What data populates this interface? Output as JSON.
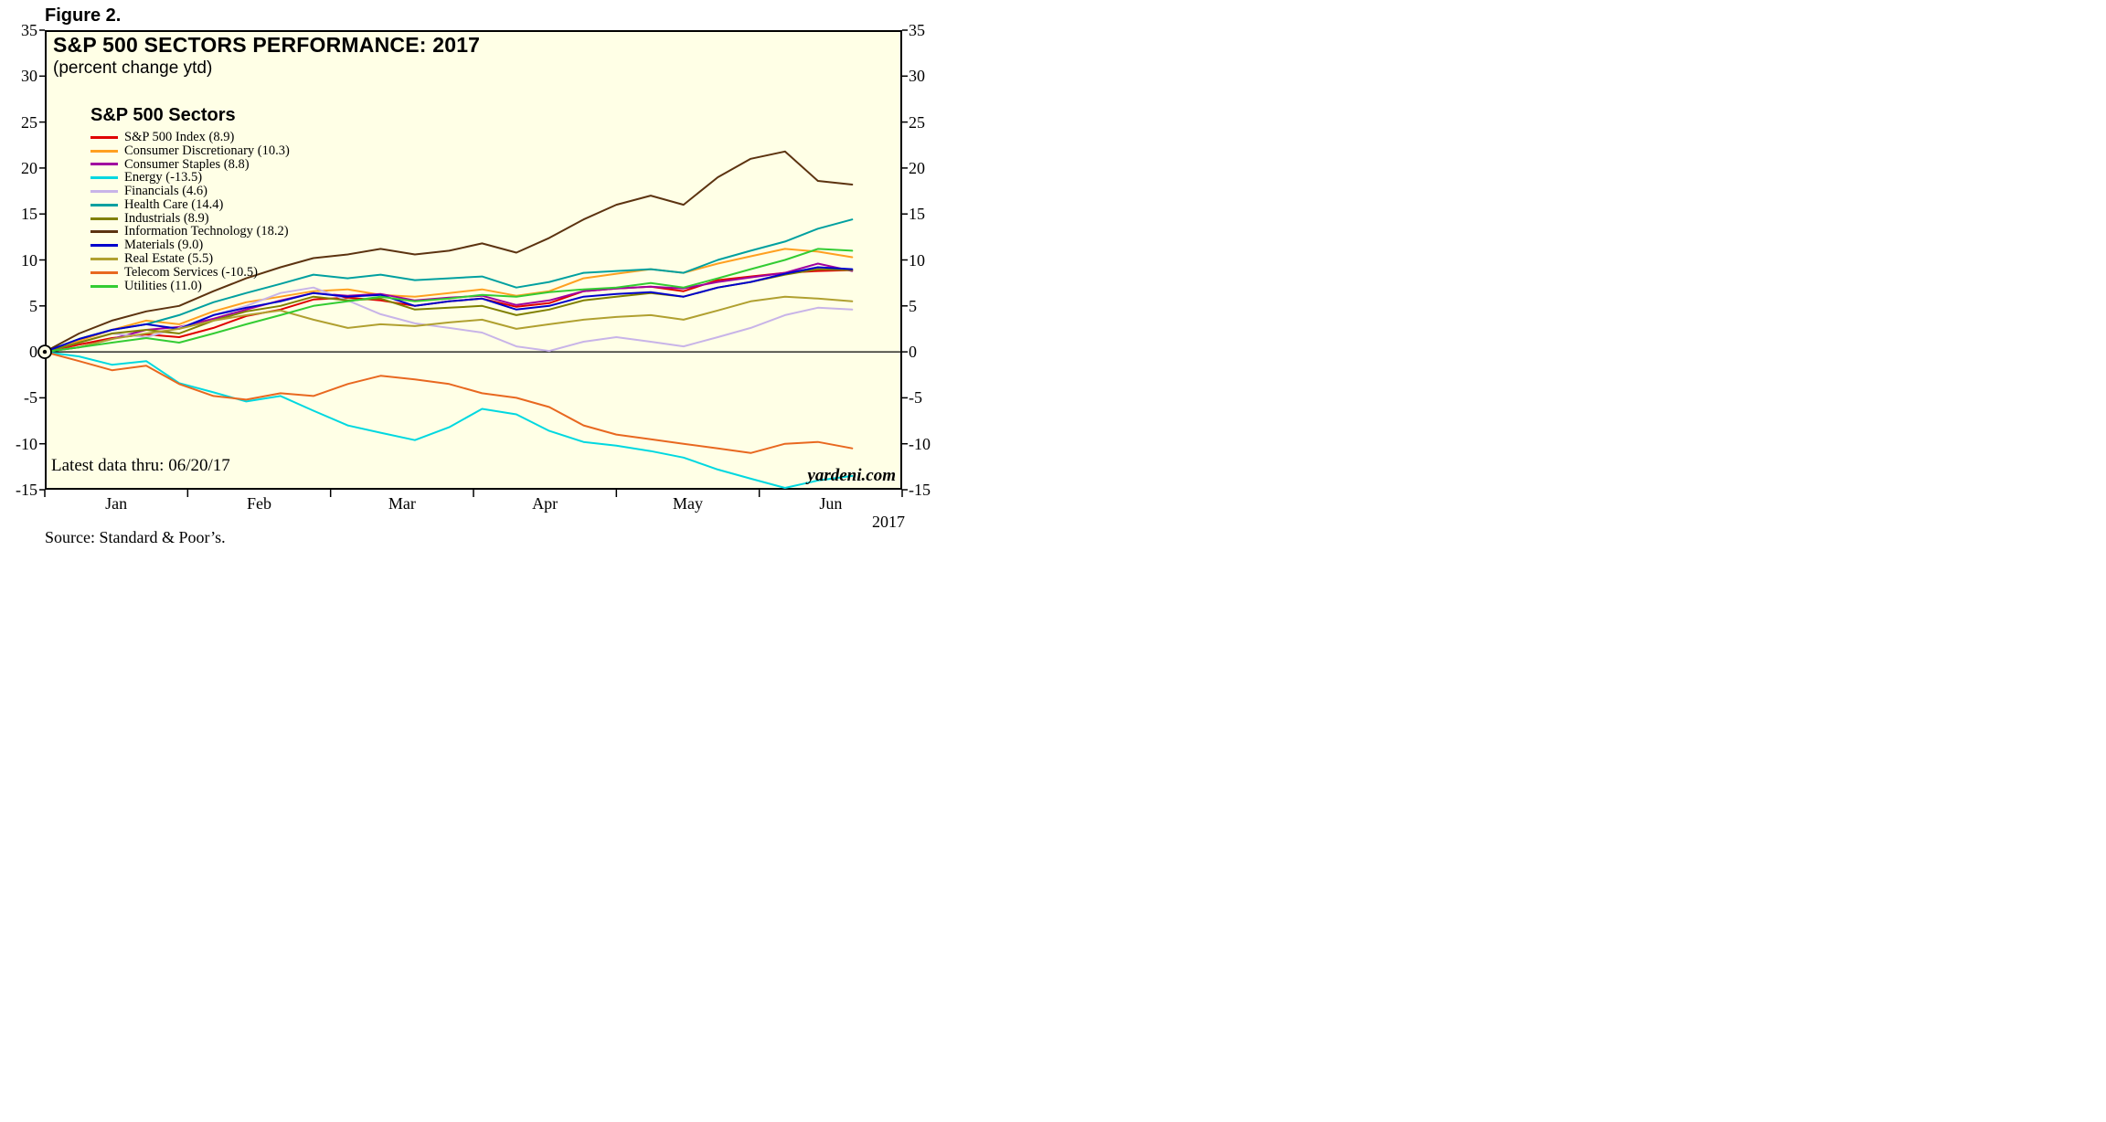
{
  "figure_label": "Figure 2.",
  "chart": {
    "title": "S&P 500 SECTORS PERFORMANCE: 2017",
    "subtitle": "(percent change ytd)",
    "legend_title": "S&P 500 Sectors",
    "footnote": "Latest data thru: 06/20/17",
    "watermark": "yardeni.com",
    "year_label": "2017",
    "source": "Source: Standard & Poor’s.",
    "colors": {
      "plot_bg": "#FFFFE6",
      "frame": "#000000",
      "zero_line": "#000000"
    }
  },
  "chart_data": {
    "type": "line",
    "title": "S&P 500 SECTORS PERFORMANCE: 2017",
    "ylabel": "percent change ytd",
    "ylim": [
      -15,
      35
    ],
    "y_ticks": [
      35,
      30,
      25,
      20,
      15,
      10,
      5,
      0,
      -5,
      -10,
      -15
    ],
    "x_axis": {
      "months": [
        "Jan",
        "Feb",
        "Mar",
        "Apr",
        "May",
        "Jun"
      ],
      "range": [
        0,
        6
      ]
    },
    "x": [
      0,
      0.24,
      0.47,
      0.71,
      0.94,
      1.18,
      1.41,
      1.65,
      1.88,
      2.12,
      2.35,
      2.59,
      2.83,
      3.06,
      3.3,
      3.53,
      3.77,
      4.0,
      4.24,
      4.47,
      4.71,
      4.94,
      5.18,
      5.41,
      5.65
    ],
    "series": [
      {
        "name": "S&P 500 Index",
        "final": 8.9,
        "label": "S&P 500 Index (8.9)",
        "color": "#E00000",
        "values": [
          0,
          0.8,
          1.5,
          1.9,
          1.6,
          2.6,
          3.9,
          4.6,
          5.7,
          5.9,
          5.6,
          5.0,
          5.5,
          5.8,
          4.9,
          5.3,
          6.6,
          6.9,
          7.1,
          6.6,
          7.8,
          8.2,
          8.6,
          8.8,
          8.9
        ]
      },
      {
        "name": "Consumer Discretionary",
        "final": 10.3,
        "label": "Consumer Discretionary (10.3)",
        "color": "#FFA020",
        "values": [
          0,
          1.2,
          2.4,
          3.4,
          3.0,
          4.4,
          5.4,
          6.0,
          6.6,
          6.8,
          6.2,
          6.0,
          6.4,
          6.8,
          6.1,
          6.6,
          8.0,
          8.5,
          9.0,
          8.6,
          9.6,
          10.4,
          11.2,
          10.9,
          10.3
        ]
      },
      {
        "name": "Consumer Staples",
        "final": 8.8,
        "label": "Consumer Staples (8.8)",
        "color": "#A000A0",
        "values": [
          0,
          0.5,
          1.4,
          2.4,
          2.7,
          3.6,
          4.6,
          5.6,
          6.4,
          6.1,
          6.3,
          5.6,
          5.9,
          6.1,
          5.1,
          5.6,
          6.6,
          6.9,
          7.1,
          6.9,
          7.6,
          8.1,
          8.6,
          9.6,
          8.8
        ]
      },
      {
        "name": "Energy",
        "final": -13.5,
        "label": "Energy (-13.5)",
        "color": "#00D8E0",
        "values": [
          0,
          -0.5,
          -1.4,
          -1.0,
          -3.4,
          -4.4,
          -5.4,
          -4.8,
          -6.4,
          -8.0,
          -8.8,
          -9.6,
          -8.2,
          -6.2,
          -6.8,
          -8.6,
          -9.8,
          -10.2,
          -10.8,
          -11.5,
          -12.8,
          -13.8,
          -14.8,
          -14.0,
          -13.5
        ]
      },
      {
        "name": "Financials",
        "final": 4.6,
        "label": "Financials (4.6)",
        "color": "#C8B4E8",
        "values": [
          0,
          1.0,
          2.0,
          1.6,
          2.6,
          4.0,
          5.0,
          6.4,
          7.0,
          5.6,
          4.1,
          3.1,
          2.6,
          2.1,
          0.6,
          0.1,
          1.1,
          1.6,
          1.1,
          0.6,
          1.6,
          2.6,
          4.0,
          4.8,
          4.6
        ]
      },
      {
        "name": "Health Care",
        "final": 14.4,
        "label": "Health Care (14.4)",
        "color": "#00A0A0",
        "values": [
          0,
          1.4,
          2.4,
          3.0,
          4.0,
          5.4,
          6.4,
          7.4,
          8.4,
          8.0,
          8.4,
          7.8,
          8.0,
          8.2,
          7.0,
          7.6,
          8.6,
          8.8,
          9.0,
          8.6,
          10.0,
          11.0,
          12.0,
          13.4,
          14.4
        ]
      },
      {
        "name": "Industrials",
        "final": 8.9,
        "label": "Industrials (8.9)",
        "color": "#808000",
        "values": [
          0,
          1.0,
          2.0,
          2.4,
          2.0,
          3.4,
          4.4,
          5.0,
          6.0,
          5.6,
          5.8,
          4.6,
          4.8,
          5.0,
          4.0,
          4.6,
          5.6,
          6.0,
          6.4,
          6.0,
          7.0,
          7.6,
          8.4,
          9.0,
          8.9
        ]
      },
      {
        "name": "Information Technology",
        "final": 18.2,
        "label": "Information Technology (18.2)",
        "color": "#5C3310",
        "values": [
          0,
          2.0,
          3.4,
          4.4,
          5.0,
          6.6,
          8.0,
          9.2,
          10.2,
          10.6,
          11.2,
          10.6,
          11.0,
          11.8,
          10.8,
          12.4,
          14.4,
          16.0,
          17.0,
          16.0,
          19.0,
          21.0,
          21.8,
          18.6,
          18.2
        ]
      },
      {
        "name": "Materials",
        "final": 9.0,
        "label": "Materials (9.0)",
        "color": "#0000CC",
        "values": [
          0,
          1.4,
          2.4,
          3.0,
          2.5,
          4.0,
          4.8,
          5.5,
          6.4,
          6.0,
          6.2,
          5.0,
          5.5,
          5.8,
          4.6,
          5.0,
          6.0,
          6.3,
          6.5,
          6.0,
          7.0,
          7.6,
          8.5,
          9.2,
          9.0
        ]
      },
      {
        "name": "Real Estate",
        "final": 5.5,
        "label": "Real Estate (5.5)",
        "color": "#B0A030",
        "values": [
          0,
          0.5,
          1.4,
          2.0,
          2.5,
          3.4,
          4.0,
          4.5,
          3.5,
          2.6,
          3.0,
          2.8,
          3.2,
          3.5,
          2.5,
          3.0,
          3.5,
          3.8,
          4.0,
          3.5,
          4.5,
          5.5,
          6.0,
          5.8,
          5.5
        ]
      },
      {
        "name": "Telecom Services",
        "final": -10.5,
        "label": "Telecom Services (-10.5)",
        "color": "#E86820",
        "values": [
          0,
          -1.0,
          -2.0,
          -1.5,
          -3.5,
          -4.8,
          -5.2,
          -4.5,
          -4.8,
          -3.5,
          -2.6,
          -3.0,
          -3.5,
          -4.5,
          -5.0,
          -6.0,
          -8.0,
          -9.0,
          -9.5,
          -10.0,
          -10.5,
          -11.0,
          -10.0,
          -9.8,
          -10.5
        ]
      },
      {
        "name": "Utilities",
        "final": 11.0,
        "label": "Utilities (11.0)",
        "color": "#33CC33",
        "values": [
          0,
          0.5,
          1.0,
          1.5,
          1.0,
          2.0,
          3.0,
          4.0,
          5.0,
          5.5,
          6.0,
          5.5,
          5.8,
          6.2,
          6.0,
          6.5,
          6.8,
          7.0,
          7.5,
          7.0,
          8.0,
          9.0,
          10.0,
          11.2,
          11.0
        ]
      }
    ],
    "legend_position": "upper-left",
    "grid": false
  }
}
